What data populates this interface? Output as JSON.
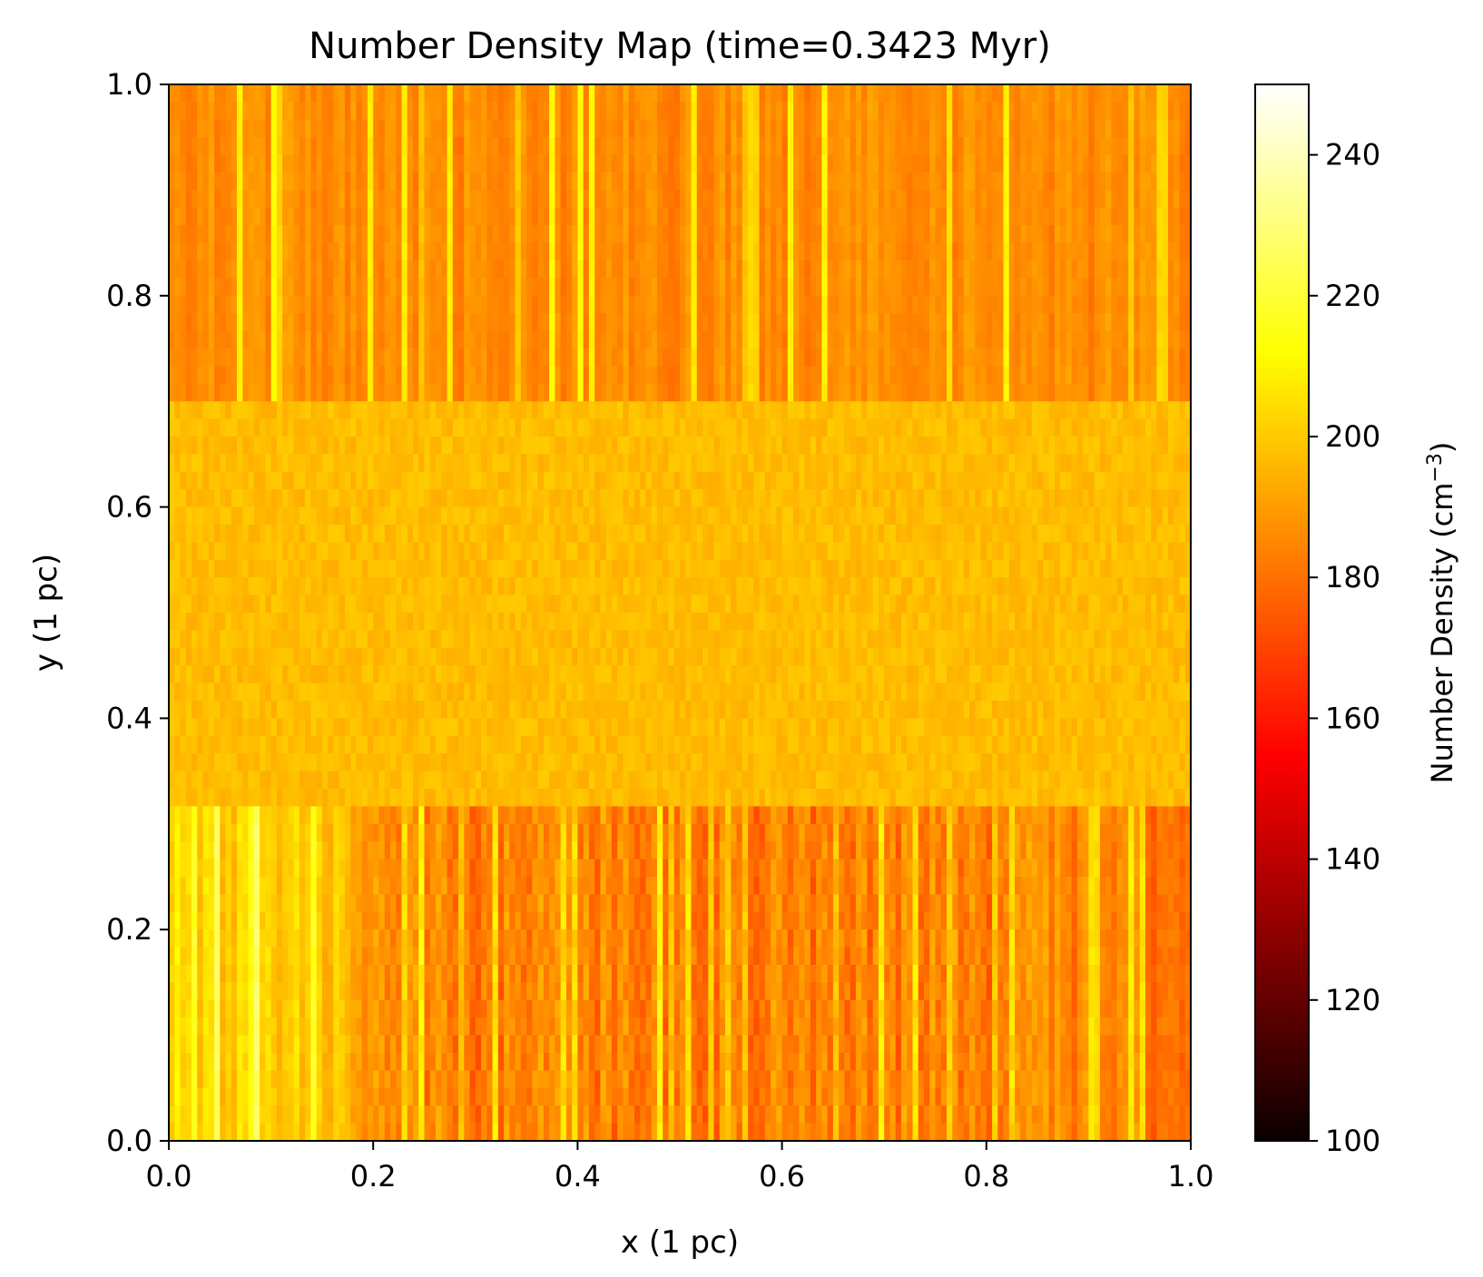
{
  "chart_data": {
    "type": "heatmap",
    "title": "Number Density Map (time=0.3423 Myr)",
    "xlabel": "x (1 pc)",
    "ylabel": "y (1 pc)",
    "xlim": [
      0.0,
      1.0
    ],
    "ylim": [
      0.0,
      1.0
    ],
    "xticks": [
      "0.0",
      "0.2",
      "0.4",
      "0.6",
      "0.8",
      "1.0"
    ],
    "yticks": [
      "0.0",
      "0.2",
      "0.4",
      "0.6",
      "0.8",
      "1.0"
    ],
    "colormap": "hot",
    "colorbar": {
      "label": "Number Density (cm",
      "label_superscript": "−3",
      "label_close": ")",
      "range": [
        100,
        250
      ],
      "ticks": [
        "100",
        "120",
        "140",
        "160",
        "180",
        "200",
        "220",
        "240"
      ]
    },
    "regions": [
      {
        "y_range": [
          0.0,
          0.3
        ],
        "typical_density": 188,
        "pattern": "vertical streaks, denser lattice-like striations in x 0.2-0.85, brighter left edge"
      },
      {
        "y_range": [
          0.3,
          0.7
        ],
        "typical_density": 197,
        "pattern": "mottled, fairly uniform orange"
      },
      {
        "y_range": [
          0.7,
          1.0
        ],
        "typical_density": 186,
        "pattern": "vertical streaks with yellow filaments"
      }
    ],
    "grid": false
  }
}
